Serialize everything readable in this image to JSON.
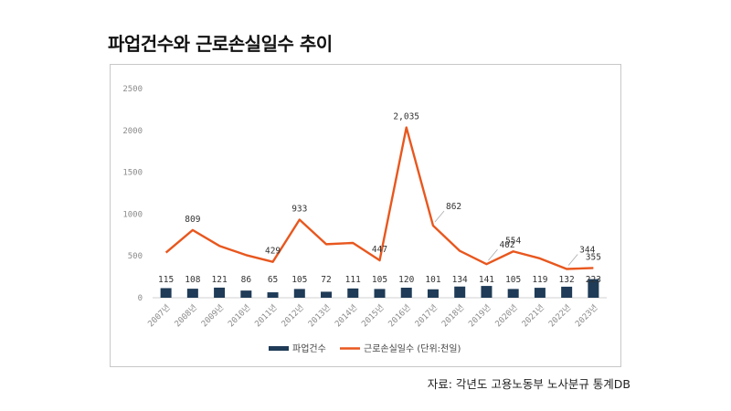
{
  "title": "파업건수와 근로손실일수 추이",
  "source": "자료: 각년도 고용노동부 노사분규 통계DB",
  "colors": {
    "bar": "#1f3b57",
    "line": "#e8571e"
  },
  "chart_data": {
    "type": "bar+line",
    "categories": [
      "2007년",
      "2008년",
      "2009년",
      "2010년",
      "2011년",
      "2012년",
      "2013년",
      "2014년",
      "2015년",
      "2016년",
      "2017년",
      "2018년",
      "2019년",
      "2020년",
      "2021년",
      "2022년",
      "2023년"
    ],
    "ylim": [
      0,
      2500
    ],
    "yticks": [
      0,
      500,
      1000,
      1500,
      2000,
      2500
    ],
    "grid": false,
    "legend_position": "bottom",
    "series": [
      {
        "name": "파업건수",
        "kind": "bar",
        "values": [
          115,
          108,
          121,
          86,
          65,
          105,
          72,
          111,
          105,
          120,
          101,
          134,
          141,
          105,
          119,
          132,
          223
        ],
        "labels": [
          "115",
          "108",
          "121",
          "86",
          "65",
          "105",
          "72",
          "111",
          "105",
          "120",
          "101",
          "134",
          "141",
          "105",
          "119",
          "132",
          "223"
        ]
      },
      {
        "name": "근로손실일수 (단위:천일)",
        "kind": "line",
        "values": [
          540,
          809,
          620,
          510,
          429,
          933,
          640,
          655,
          447,
          2035,
          862,
          560,
          402,
          554,
          470,
          344,
          355
        ],
        "labels": [
          "",
          "809",
          "",
          "",
          "429",
          "933",
          "",
          "",
          "447",
          "2,035",
          "862",
          "",
          "402",
          "554",
          "",
          "344",
          "355"
        ]
      }
    ]
  }
}
